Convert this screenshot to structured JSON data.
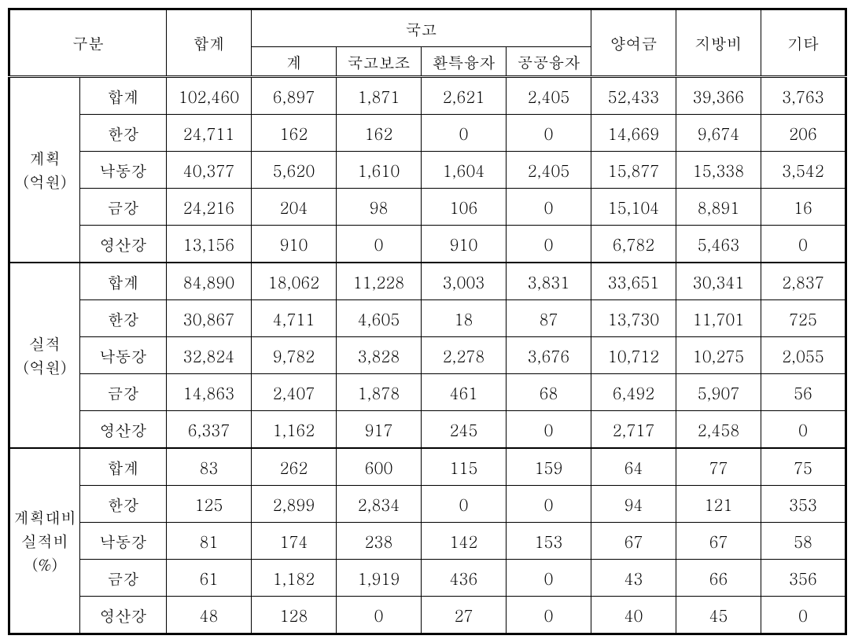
{
  "type": "table",
  "background_color": "#ffffff",
  "text_color": "#000000",
  "border_color": "#000000",
  "fontsize": 20,
  "headers": {
    "category": "구분",
    "total": "합계",
    "treasury_group": "국고",
    "treasury_sub": "계",
    "subsidy": "국고보조",
    "envloan": "환특융자",
    "publoan": "공공융자",
    "grant": "양여금",
    "local": "지방비",
    "other": "기타"
  },
  "sections": [
    {
      "label_line1": "계획",
      "label_line2": "(억원)",
      "rows": [
        {
          "sub": "합계",
          "vals": [
            "102,460",
            "6,897",
            "1,871",
            "2,621",
            "2,405",
            "52,433",
            "39,366",
            "3,763"
          ]
        },
        {
          "sub": "한강",
          "vals": [
            "24,711",
            "162",
            "162",
            "0",
            "0",
            "14,669",
            "9,674",
            "206"
          ]
        },
        {
          "sub": "낙동강",
          "vals": [
            "40,377",
            "5,620",
            "1,610",
            "1,604",
            "2,405",
            "15,877",
            "15,338",
            "3,542"
          ]
        },
        {
          "sub": "금강",
          "vals": [
            "24,216",
            "204",
            "98",
            "106",
            "0",
            "15,104",
            "8,891",
            "16"
          ]
        },
        {
          "sub": "영산강",
          "vals": [
            "13,156",
            "910",
            "0",
            "910",
            "0",
            "6,782",
            "5,463",
            "0"
          ]
        }
      ]
    },
    {
      "label_line1": "실적",
      "label_line2": "(억원)",
      "rows": [
        {
          "sub": "합계",
          "vals": [
            "84,890",
            "18,062",
            "11,228",
            "3,003",
            "3,831",
            "33,651",
            "30,341",
            "2,837"
          ]
        },
        {
          "sub": "한강",
          "vals": [
            "30,867",
            "4,711",
            "4,605",
            "18",
            "87",
            "13,730",
            "11,701",
            "725"
          ]
        },
        {
          "sub": "낙동강",
          "vals": [
            "32,824",
            "9,782",
            "3,828",
            "2,278",
            "3,676",
            "10,712",
            "10,275",
            "2,055"
          ]
        },
        {
          "sub": "금강",
          "vals": [
            "14,863",
            "2,407",
            "1,878",
            "461",
            "68",
            "6,492",
            "5,907",
            "56"
          ]
        },
        {
          "sub": "영산강",
          "vals": [
            "6,337",
            "1,162",
            "917",
            "245",
            "0",
            "2,717",
            "2,458",
            "0"
          ]
        }
      ]
    },
    {
      "label_line1": "계획대비",
      "label_line2": "실적비",
      "label_line3": "(%)",
      "rows": [
        {
          "sub": "합계",
          "vals": [
            "83",
            "262",
            "600",
            "115",
            "159",
            "64",
            "77",
            "75"
          ]
        },
        {
          "sub": "한강",
          "vals": [
            "125",
            "2,899",
            "2,834",
            "0",
            "0",
            "94",
            "121",
            "353"
          ]
        },
        {
          "sub": "낙동강",
          "vals": [
            "81",
            "174",
            "238",
            "142",
            "153",
            "67",
            "67",
            "58"
          ]
        },
        {
          "sub": "금강",
          "vals": [
            "61",
            "1,182",
            "1,919",
            "436",
            "0",
            "43",
            "66",
            "356"
          ]
        },
        {
          "sub": "영산강",
          "vals": [
            "48",
            "128",
            "0",
            "27",
            "0",
            "40",
            "45",
            "0"
          ]
        }
      ]
    }
  ]
}
